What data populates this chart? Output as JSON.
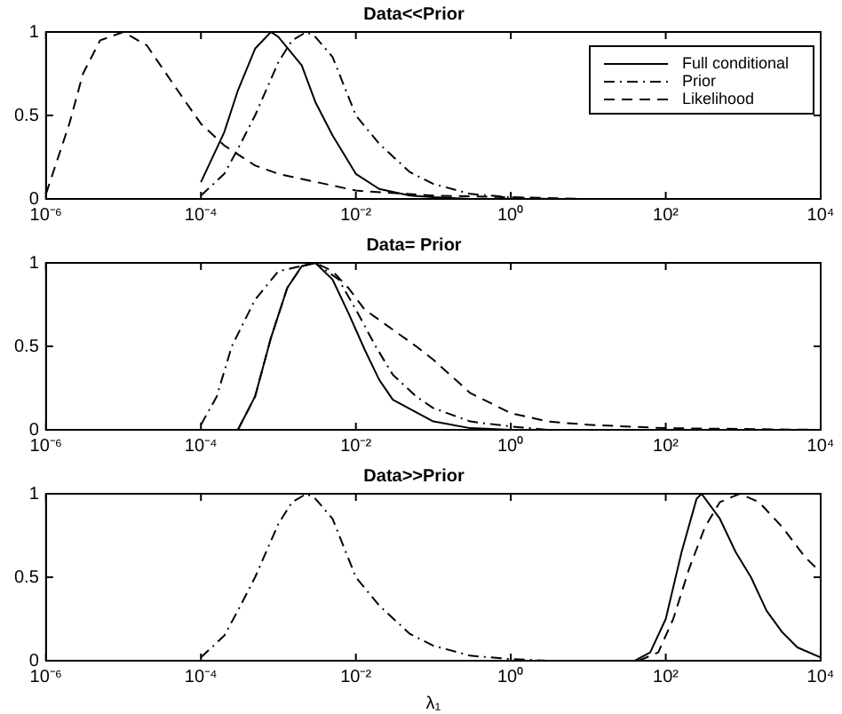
{
  "chart_data": [
    {
      "type": "line",
      "title": "Data<<Prior",
      "log": "x",
      "legend": "top right",
      "xlim": [
        1e-06,
        10000.0
      ],
      "ylim": [
        0,
        1
      ],
      "xticks": [
        {
          "value": 1e-06,
          "label": "10⁻⁶"
        },
        {
          "value": 0.0001,
          "label": "10⁻⁴"
        },
        {
          "value": 0.01,
          "label": "10⁻²"
        },
        {
          "value": 1,
          "label": "10⁰"
        },
        {
          "value": 100,
          "label": "10²"
        },
        {
          "value": 10000.0,
          "label": "10⁴"
        }
      ],
      "yticks": [
        0,
        0.5,
        1
      ],
      "marker": "none",
      "series": [
        {
          "name": "Full conditional",
          "color": "#000000",
          "line_style": "solid",
          "x": [
            0.0001,
            0.0002,
            0.0003,
            0.0005,
            0.0008,
            0.001,
            0.002,
            0.003,
            0.005,
            0.01,
            0.02,
            0.05,
            0.1,
            0.3,
            1
          ],
          "values": [
            0.1,
            0.4,
            0.65,
            0.9,
            1,
            0.97,
            0.8,
            0.58,
            0.38,
            0.15,
            0.06,
            0.02,
            0.01,
            0,
            0
          ]
        },
        {
          "name": "Prior",
          "color": "#000000",
          "line_style": "dashdot",
          "x": [
            0.0001,
            0.0002,
            0.0003,
            0.0005,
            0.001,
            0.0015,
            0.0023,
            0.003,
            0.005,
            0.01,
            0.02,
            0.05,
            0.1,
            0.3,
            1,
            3
          ],
          "values": [
            0.02,
            0.15,
            0.3,
            0.5,
            0.82,
            0.95,
            1,
            0.97,
            0.85,
            0.5,
            0.33,
            0.16,
            0.09,
            0.03,
            0.01,
            0
          ]
        },
        {
          "name": "Likelihood",
          "color": "#000000",
          "line_style": "dashed",
          "x": [
            1e-06,
            2e-06,
            3e-06,
            5e-06,
            1e-05,
            2e-05,
            5e-05,
            0.0001,
            0.0002,
            0.0005,
            0.001,
            0.01,
            0.1,
            1,
            10
          ],
          "values": [
            0.03,
            0.45,
            0.75,
            0.95,
            1,
            0.92,
            0.65,
            0.45,
            0.32,
            0.2,
            0.15,
            0.05,
            0.02,
            0.01,
            0
          ]
        }
      ]
    },
    {
      "type": "line",
      "title": "Data= Prior",
      "log": "x",
      "xlim": [
        1e-06,
        10000.0
      ],
      "ylim": [
        0,
        1
      ],
      "xticks": [
        {
          "value": 1e-06,
          "label": "10⁻⁶"
        },
        {
          "value": 0.0001,
          "label": "10⁻⁴"
        },
        {
          "value": 0.01,
          "label": "10⁻²"
        },
        {
          "value": 1,
          "label": "10⁰"
        },
        {
          "value": 100,
          "label": "10²"
        },
        {
          "value": 10000.0,
          "label": "10⁴"
        }
      ],
      "yticks": [
        0,
        0.5,
        1
      ],
      "marker": "none",
      "series": [
        {
          "color": "#000000",
          "line_style": "solid",
          "x": [
            0.0003,
            0.0005,
            0.0008,
            0.0013,
            0.002,
            0.003,
            0.005,
            0.008,
            0.013,
            0.02,
            0.03,
            0.1,
            0.3,
            1
          ],
          "values": [
            0,
            0.2,
            0.55,
            0.85,
            0.98,
            1,
            0.9,
            0.7,
            0.48,
            0.3,
            0.18,
            0.05,
            0.01,
            0
          ]
        },
        {
          "color": "#000000",
          "line_style": "dashdot",
          "x": [
            0.0001,
            0.00016,
            0.00025,
            0.0005,
            0.001,
            0.003,
            0.006,
            0.01,
            0.018,
            0.03,
            0.06,
            0.1,
            0.3,
            1,
            3
          ],
          "values": [
            0.03,
            0.2,
            0.5,
            0.78,
            0.95,
            1,
            0.9,
            0.72,
            0.5,
            0.33,
            0.2,
            0.13,
            0.05,
            0.02,
            0
          ]
        },
        {
          "color": "#000000",
          "line_style": "dashed",
          "x": [
            0.0003,
            0.0005,
            0.0008,
            0.0013,
            0.002,
            0.003,
            0.005,
            0.008,
            0.013,
            0.03,
            0.06,
            0.1,
            0.3,
            1,
            3,
            10,
            100,
            10000.0
          ],
          "values": [
            0,
            0.2,
            0.55,
            0.85,
            0.98,
            1,
            0.95,
            0.85,
            0.72,
            0.6,
            0.5,
            0.42,
            0.22,
            0.1,
            0.05,
            0.03,
            0.01,
            0
          ]
        }
      ]
    },
    {
      "type": "line",
      "title": "Data>>Prior",
      "xlabel": "λ₁",
      "log": "x",
      "xlim": [
        1e-06,
        10000.0
      ],
      "ylim": [
        0,
        1
      ],
      "xticks": [
        {
          "value": 1e-06,
          "label": "10⁻⁶"
        },
        {
          "value": 0.0001,
          "label": "10⁻⁴"
        },
        {
          "value": 0.01,
          "label": "10⁻²"
        },
        {
          "value": 1,
          "label": "10⁰"
        },
        {
          "value": 100,
          "label": "10²"
        },
        {
          "value": 10000.0,
          "label": "10⁴"
        }
      ],
      "yticks": [
        0,
        0.5,
        1
      ],
      "marker": "none",
      "series": [
        {
          "color": "#000000",
          "line_style": "solid",
          "x": [
            40,
            63,
            100,
            160,
            250,
            290,
            500,
            800,
            1260,
            2000,
            3200,
            5000,
            10000.0
          ],
          "values": [
            0,
            0.05,
            0.25,
            0.65,
            0.97,
            1,
            0.85,
            0.65,
            0.5,
            0.3,
            0.17,
            0.08,
            0.02
          ]
        },
        {
          "color": "#000000",
          "line_style": "dashdot",
          "x": [
            0.0001,
            0.0002,
            0.0003,
            0.0005,
            0.001,
            0.0015,
            0.0023,
            0.003,
            0.005,
            0.01,
            0.02,
            0.05,
            0.1,
            0.3,
            1,
            3
          ],
          "values": [
            0.02,
            0.15,
            0.3,
            0.5,
            0.82,
            0.95,
            1,
            0.97,
            0.85,
            0.5,
            0.33,
            0.16,
            0.09,
            0.03,
            0.01,
            0
          ]
        },
        {
          "color": "#000000",
          "line_style": "dashed",
          "x": [
            45,
            80,
            125,
            200,
            320,
            500,
            900,
            1600,
            3200,
            6300,
            10000.0
          ],
          "values": [
            0,
            0.05,
            0.25,
            0.55,
            0.8,
            0.95,
            1,
            0.95,
            0.8,
            0.62,
            0.53
          ]
        }
      ]
    }
  ]
}
